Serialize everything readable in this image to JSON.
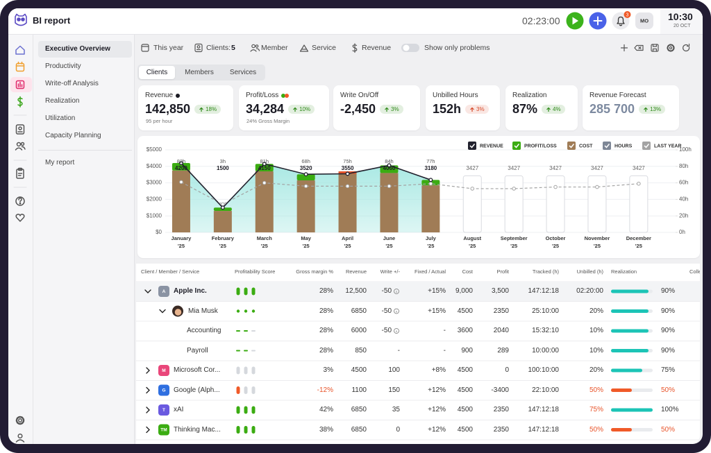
{
  "header": {
    "title": "BI report",
    "timer": "02:23:00",
    "notifications": "3",
    "avatar": "MO",
    "time": "10:30",
    "date": "20 OCT"
  },
  "menu": {
    "items": [
      "Executive Overview",
      "Productivity",
      "Write-off Analysis",
      "Realization",
      "Utilization",
      "Capacity Planning"
    ],
    "extra": [
      "My report"
    ]
  },
  "filters": {
    "period": "This year",
    "clients_label": "Clients:",
    "clients_count": "5",
    "member": "Member",
    "service": "Service",
    "metric": "Revenue",
    "toggle": "Show only problems"
  },
  "tabs": [
    "Clients",
    "Members",
    "Services"
  ],
  "kpis": [
    {
      "label": "Revenue",
      "value": "142,850",
      "change": "18%",
      "change_color": "#2f8a1a",
      "note": "95 per hour"
    },
    {
      "label": "Profit/Loss",
      "value": "34,284",
      "change": "10%",
      "change_color": "#2f8a1a",
      "note": "24% Gross Margin"
    },
    {
      "label": "Write On/Off",
      "value": "-2,450",
      "change": "3%",
      "change_color": "#2f8a1a"
    },
    {
      "label": "Unbilled Hours",
      "value": "152h",
      "change": "3%",
      "change_color": "#d64a2a"
    },
    {
      "label": "Realization",
      "value": "87%",
      "change": "4%",
      "change_color": "#2f8a1a"
    },
    {
      "label": "Revenue Forecast",
      "value": "285 700",
      "change": "13%",
      "change_color": "#2f8a1a",
      "value_color": "#7d8aa0"
    }
  ],
  "chart": {
    "type": "combo",
    "legend": [
      {
        "name": "REVENUE",
        "color": "#22222e"
      },
      {
        "name": "PROFIT/LOSS",
        "color": "#3bac12"
      },
      {
        "name": "COST",
        "color": "#a07c56"
      },
      {
        "name": "HOURS",
        "color": "#7e8796"
      },
      {
        "name": "LAST YEAR",
        "color": "#a3a3a3"
      }
    ],
    "months": [
      "January",
      "February",
      "March",
      "May",
      "April",
      "June",
      "July",
      "August",
      "September",
      "October",
      "November",
      "December"
    ],
    "years": [
      "'25",
      "'25",
      "'25",
      "'25",
      "'25",
      "'25",
      "'25",
      "'25",
      "'25",
      "'25",
      "'25",
      "'25"
    ],
    "ylim": [
      0,
      5000
    ],
    "yticks": [
      {
        "value": 0,
        "label": "$0"
      },
      {
        "value": 1000,
        "label": "$1000"
      },
      {
        "value": 2000,
        "label": "$2000"
      },
      {
        "value": 3000,
        "label": "$3000"
      },
      {
        "value": 4000,
        "label": "$4000"
      },
      {
        "value": 5000,
        "label": "$5000"
      }
    ],
    "y2lim": [
      0,
      100
    ],
    "y2ticks": [
      {
        "value": 0,
        "label": "0h"
      },
      {
        "value": 20,
        "label": "20h"
      },
      {
        "value": 40,
        "label": "40h"
      },
      {
        "value": 60,
        "label": "60h"
      },
      {
        "value": 80,
        "label": "80h"
      },
      {
        "value": 100,
        "label": "100h"
      }
    ],
    "revenue": [
      4200,
      1500,
      4150,
      3520,
      3550,
      4060,
      3180,
      null,
      null,
      null,
      null,
      null
    ],
    "forecast": [
      null,
      null,
      null,
      null,
      null,
      null,
      null,
      3427,
      3427,
      3427,
      3427,
      3427
    ],
    "cost": [
      3750,
      1300,
      3700,
      3150,
      3700,
      3600,
      2850,
      null,
      null,
      null,
      null,
      null
    ],
    "profit": [
      450,
      200,
      450,
      370,
      -150,
      460,
      330,
      null,
      null,
      null,
      null,
      null
    ],
    "hours": [
      82,
      3,
      81,
      68,
      75,
      84,
      77,
      null,
      null,
      null,
      null,
      null
    ],
    "hours_labels": [
      "82h",
      "3h",
      "81h",
      "68h",
      "75h",
      "84h",
      "77h",
      null,
      null,
      null,
      null,
      null
    ],
    "last_year": [
      3050,
      1700,
      3000,
      2800,
      2800,
      2800,
      2950,
      2650,
      2650,
      2750,
      2750,
      2950
    ],
    "negative_color": "#e8542a",
    "area_color": "#9fe6e0",
    "forecast_color": "#d9dbe0"
  },
  "table": {
    "columns": [
      "Client / Member / Service",
      "Profitability Score",
      "Gross margin %",
      "Revenue",
      "Write +/-",
      "Fixed / Actual",
      "Cost",
      "Profit",
      "Tracked (h)",
      "Unbilled (h)",
      "Realization",
      "Colle"
    ],
    "rows": [
      {
        "level": 0,
        "expanded": true,
        "avatar": "A",
        "avatar_color": "#8a93a3",
        "name": "Apple Inc.",
        "score": [
          "#3bac12",
          "#3bac12",
          "#3bac12"
        ],
        "gross_margin": "28%",
        "revenue": "12,500",
        "write": "-50",
        "write_info": true,
        "fixed_actual": "+15%",
        "cost": "9,000",
        "profit": "3,500",
        "tracked": "147:12:18",
        "unbilled": "02:20:00",
        "realization": {
          "value": 90,
          "label": "90%"
        },
        "realization_color": "#1cc4b6"
      },
      {
        "level": 1,
        "expanded": true,
        "name": "Mia Musk",
        "score": [
          "#3bac12",
          "#3bac12",
          "#3bac12"
        ],
        "gross_margin": "28%",
        "revenue": "6850",
        "write": "-50",
        "write_info": true,
        "fixed_actual": "+15%",
        "cost": "4500",
        "profit": "2350",
        "tracked": "25:10:00",
        "unbilled": "20%",
        "realization": {
          "value": 90,
          "label": "90%"
        },
        "realization_color": "#1cc4b6"
      },
      {
        "level": 2,
        "name": "Accounting",
        "score": [
          "#3bac12",
          "#3bac12",
          "#d5d8dd"
        ],
        "gross_margin": "28%",
        "revenue": "6000",
        "write": "-50",
        "write_info": true,
        "fixed_actual": "-",
        "cost": "3600",
        "profit": "2040",
        "tracked": "15:32:10",
        "unbilled": "10%",
        "realization": {
          "value": 90,
          "label": "90%"
        },
        "realization_color": "#1cc4b6"
      },
      {
        "level": 2,
        "name": "Payroll",
        "score": [
          "#3bac12",
          "#3bac12",
          "#d5d8dd"
        ],
        "gross_margin": "28%",
        "revenue": "850",
        "write": "-",
        "fixed_actual": "-",
        "cost": "900",
        "profit": "289",
        "tracked": "10:00:00",
        "unbilled": "10%",
        "realization": {
          "value": 90,
          "label": "90%"
        },
        "realization_color": "#1cc4b6"
      },
      {
        "level": 0,
        "expanded": false,
        "avatar": "M",
        "avatar_color": "#e9467a",
        "name": "Microsoft Cor...",
        "score": [
          "#d5d8dd",
          "#d5d8dd",
          "#d5d8dd"
        ],
        "gross_margin": "3%",
        "revenue": "4500",
        "write": "100",
        "fixed_actual": "+8%",
        "cost": "4500",
        "profit": "0",
        "tracked": "100:10:00",
        "unbilled": "20%",
        "realization": {
          "value": 75,
          "label": "75%"
        },
        "realization_color": "#1cc4b6"
      },
      {
        "level": 0,
        "expanded": false,
        "avatar": "G",
        "avatar_color": "#2f6fe0",
        "name": "Google (Alph...",
        "score": [
          "#f05a28",
          "#d5d8dd",
          "#d5d8dd"
        ],
        "gross_margin": "-12%",
        "revenue": "1100",
        "write": "150",
        "fixed_actual": "+12%",
        "cost": "4500",
        "profit": "-3400",
        "tracked": "22:10:00",
        "unbilled": "50%",
        "realization": {
          "value": 50,
          "label": "50%"
        },
        "realization_color": "#f05a28",
        "text_colors": {
          "gross_margin": "#e8542a",
          "unbilled": "#e8542a",
          "realization": "#e8542a"
        }
      },
      {
        "level": 0,
        "expanded": false,
        "avatar": "T",
        "avatar_color": "#6a5ae0",
        "name": "xAI",
        "score": [
          "#3bac12",
          "#3bac12",
          "#3bac12"
        ],
        "gross_margin": "42%",
        "revenue": "6850",
        "write": "35",
        "fixed_actual": "+12%",
        "cost": "4500",
        "profit": "2350",
        "tracked": "147:12:18",
        "unbilled": "75%",
        "realization": {
          "value": 100,
          "label": "100%"
        },
        "realization_color": "#1cc4b6",
        "text_colors": {
          "unbilled": "#e8542a"
        }
      },
      {
        "level": 0,
        "expanded": false,
        "avatar": "TM",
        "avatar_color": "#3bac12",
        "name": "Thinking Mac...",
        "score": [
          "#3bac12",
          "#3bac12",
          "#3bac12"
        ],
        "gross_margin": "38%",
        "revenue": "6850",
        "write": "0",
        "fixed_actual": "+12%",
        "cost": "4500",
        "profit": "2350",
        "tracked": "147:12:18",
        "unbilled": "50%",
        "realization": {
          "value": 50,
          "label": "50%"
        },
        "realization_color": "#f05a28",
        "text_colors": {
          "unbilled": "#e8542a",
          "realization": "#e8542a"
        }
      }
    ]
  }
}
